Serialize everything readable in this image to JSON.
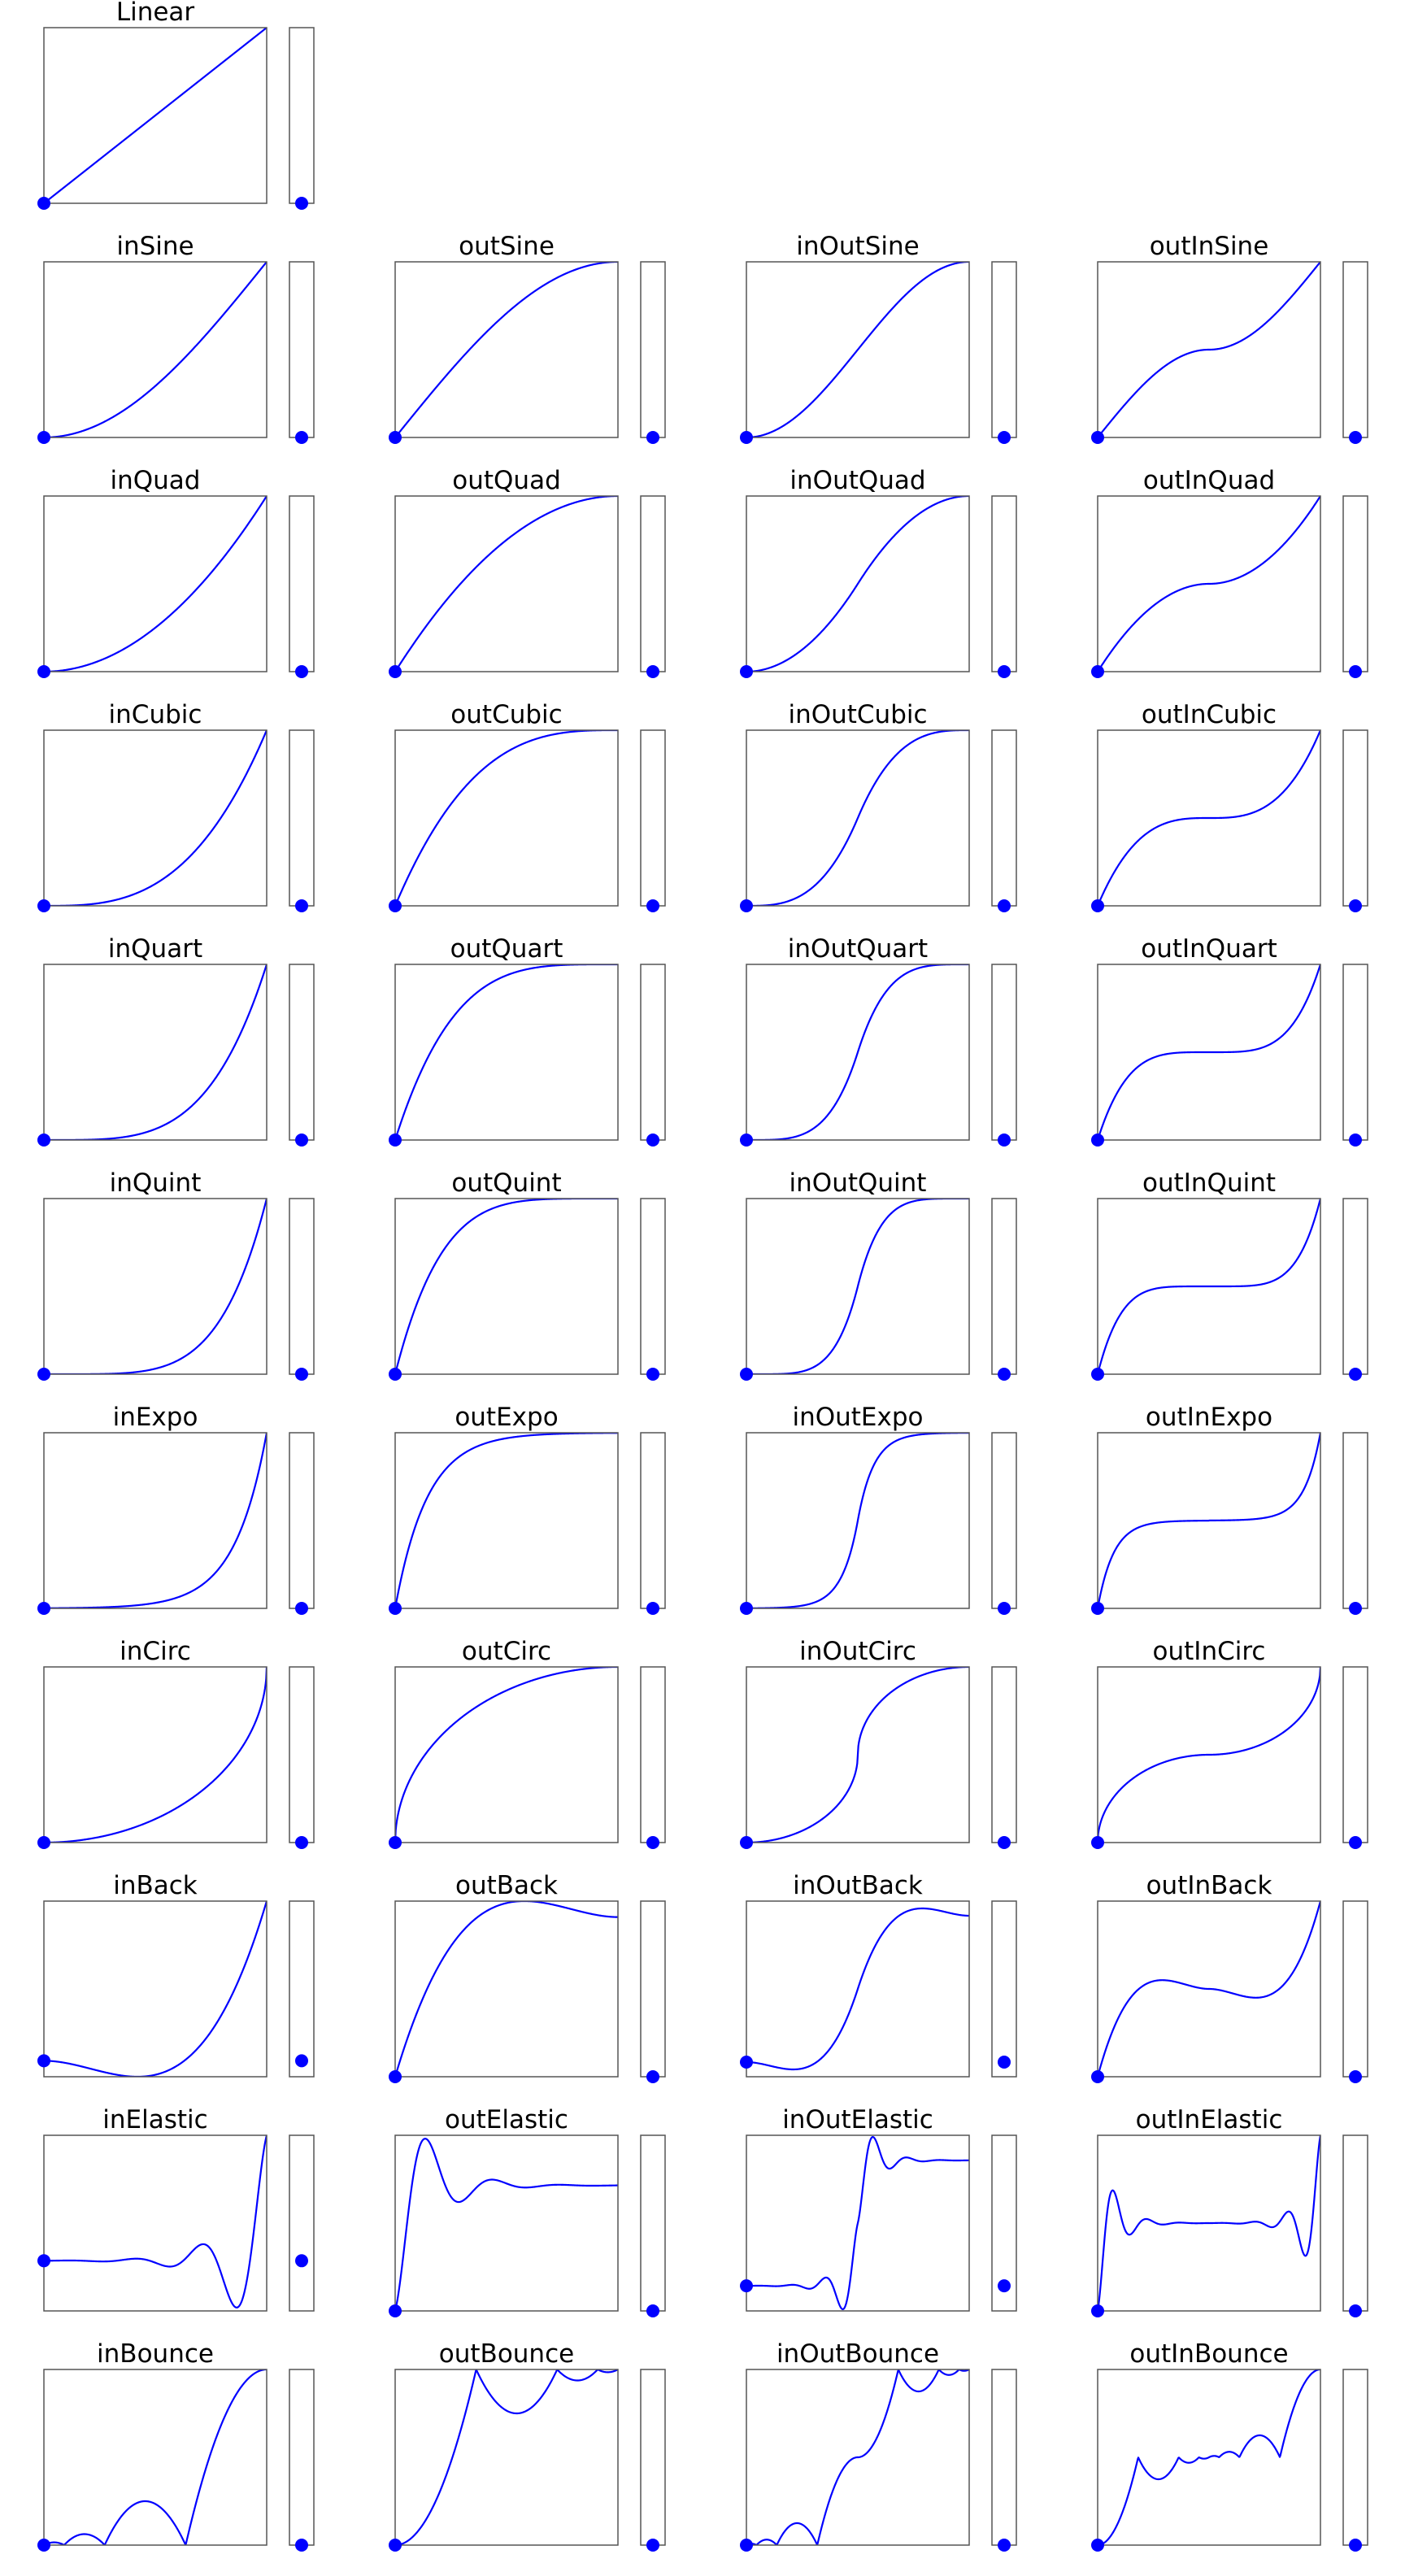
{
  "chart_data": {
    "type": "line",
    "title": "",
    "xlim": [
      0,
      1
    ],
    "line_color": "#0000ff",
    "marker_color": "#0000ff",
    "frame_color": "#555555",
    "background": "#ffffff",
    "grid": false,
    "axis_ticks": false,
    "grid_columns": 4,
    "panels": [
      {
        "name": "Linear",
        "row": 0,
        "col": 0,
        "ylim": [
          0,
          1
        ],
        "marker_value": 0
      },
      {
        "name": "inSine",
        "row": 1,
        "col": 0,
        "ylim": [
          0,
          1
        ],
        "marker_value": 0
      },
      {
        "name": "outSine",
        "row": 1,
        "col": 1,
        "ylim": [
          0,
          1
        ],
        "marker_value": 0
      },
      {
        "name": "inOutSine",
        "row": 1,
        "col": 2,
        "ylim": [
          0,
          1
        ],
        "marker_value": 0
      },
      {
        "name": "outInSine",
        "row": 1,
        "col": 3,
        "ylim": [
          0,
          1
        ],
        "marker_value": 0
      },
      {
        "name": "inQuad",
        "row": 2,
        "col": 0,
        "ylim": [
          0,
          1
        ],
        "marker_value": 0
      },
      {
        "name": "outQuad",
        "row": 2,
        "col": 1,
        "ylim": [
          0,
          1
        ],
        "marker_value": 0
      },
      {
        "name": "inOutQuad",
        "row": 2,
        "col": 2,
        "ylim": [
          0,
          1
        ],
        "marker_value": 0
      },
      {
        "name": "outInQuad",
        "row": 2,
        "col": 3,
        "ylim": [
          0,
          1
        ],
        "marker_value": 0
      },
      {
        "name": "inCubic",
        "row": 3,
        "col": 0,
        "ylim": [
          0,
          1
        ],
        "marker_value": 0
      },
      {
        "name": "outCubic",
        "row": 3,
        "col": 1,
        "ylim": [
          0,
          1
        ],
        "marker_value": 0
      },
      {
        "name": "inOutCubic",
        "row": 3,
        "col": 2,
        "ylim": [
          0,
          1
        ],
        "marker_value": 0
      },
      {
        "name": "outInCubic",
        "row": 3,
        "col": 3,
        "ylim": [
          0,
          1
        ],
        "marker_value": 0
      },
      {
        "name": "inQuart",
        "row": 4,
        "col": 0,
        "ylim": [
          0,
          1
        ],
        "marker_value": 0
      },
      {
        "name": "outQuart",
        "row": 4,
        "col": 1,
        "ylim": [
          0,
          1
        ],
        "marker_value": 0
      },
      {
        "name": "inOutQuart",
        "row": 4,
        "col": 2,
        "ylim": [
          0,
          1
        ],
        "marker_value": 0
      },
      {
        "name": "outInQuart",
        "row": 4,
        "col": 3,
        "ylim": [
          0,
          1
        ],
        "marker_value": 0
      },
      {
        "name": "inQuint",
        "row": 5,
        "col": 0,
        "ylim": [
          0,
          1
        ],
        "marker_value": 0
      },
      {
        "name": "outQuint",
        "row": 5,
        "col": 1,
        "ylim": [
          0,
          1
        ],
        "marker_value": 0
      },
      {
        "name": "inOutQuint",
        "row": 5,
        "col": 2,
        "ylim": [
          0,
          1
        ],
        "marker_value": 0
      },
      {
        "name": "outInQuint",
        "row": 5,
        "col": 3,
        "ylim": [
          0,
          1
        ],
        "marker_value": 0
      },
      {
        "name": "inExpo",
        "row": 6,
        "col": 0,
        "ylim": [
          0,
          1
        ],
        "marker_value": 0
      },
      {
        "name": "outExpo",
        "row": 6,
        "col": 1,
        "ylim": [
          0,
          1
        ],
        "marker_value": 0
      },
      {
        "name": "inOutExpo",
        "row": 6,
        "col": 2,
        "ylim": [
          0,
          1
        ],
        "marker_value": 0
      },
      {
        "name": "outInExpo",
        "row": 6,
        "col": 3,
        "ylim": [
          0,
          1
        ],
        "marker_value": 0
      },
      {
        "name": "inCirc",
        "row": 7,
        "col": 0,
        "ylim": [
          0,
          1
        ],
        "marker_value": 0
      },
      {
        "name": "outCirc",
        "row": 7,
        "col": 1,
        "ylim": [
          0,
          1
        ],
        "marker_value": 0
      },
      {
        "name": "inOutCirc",
        "row": 7,
        "col": 2,
        "ylim": [
          0,
          1
        ],
        "marker_value": 0
      },
      {
        "name": "outInCirc",
        "row": 7,
        "col": 3,
        "ylim": [
          0,
          1
        ],
        "marker_value": 0
      },
      {
        "name": "inBack",
        "row": 8,
        "col": 0,
        "ylim": [
          -0.1,
          1
        ],
        "marker_value": 0
      },
      {
        "name": "outBack",
        "row": 8,
        "col": 1,
        "ylim": [
          0,
          1.1
        ],
        "marker_value": 0
      },
      {
        "name": "inOutBack",
        "row": 8,
        "col": 2,
        "ylim": [
          -0.1,
          1.1
        ],
        "marker_value": 0
      },
      {
        "name": "outInBack",
        "row": 8,
        "col": 3,
        "ylim": [
          0,
          1
        ],
        "marker_value": 0
      },
      {
        "name": "inElastic",
        "row": 9,
        "col": 0,
        "ylim": [
          -0.4,
          1
        ],
        "marker_value": 0
      },
      {
        "name": "outElastic",
        "row": 9,
        "col": 1,
        "ylim": [
          0,
          1.4
        ],
        "marker_value": 0
      },
      {
        "name": "inOutElastic",
        "row": 9,
        "col": 2,
        "ylim": [
          -0.2,
          1.2
        ],
        "marker_value": 0
      },
      {
        "name": "outInElastic",
        "row": 9,
        "col": 3,
        "ylim": [
          0,
          1
        ],
        "marker_value": 0
      },
      {
        "name": "inBounce",
        "row": 10,
        "col": 0,
        "ylim": [
          0,
          1
        ],
        "marker_value": 0
      },
      {
        "name": "outBounce",
        "row": 10,
        "col": 1,
        "ylim": [
          0,
          1
        ],
        "marker_value": 0
      },
      {
        "name": "inOutBounce",
        "row": 10,
        "col": 2,
        "ylim": [
          0,
          1
        ],
        "marker_value": 0
      },
      {
        "name": "outInBounce",
        "row": 10,
        "col": 3,
        "ylim": [
          0,
          1
        ],
        "marker_value": 0
      }
    ]
  }
}
